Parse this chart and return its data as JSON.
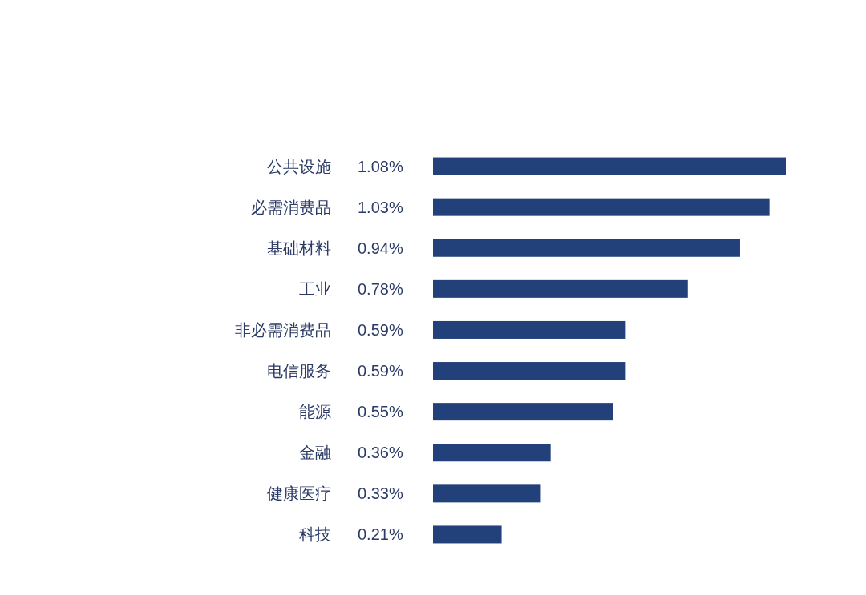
{
  "chart_data": {
    "type": "bar",
    "orientation": "horizontal",
    "categories": [
      "公共设施",
      "必需消费品",
      "基础材料",
      "工业",
      "非必需消费品",
      "电信服务",
      "能源",
      "金融",
      "健康医疗",
      "科技"
    ],
    "values": [
      1.08,
      1.03,
      0.94,
      0.78,
      0.59,
      0.59,
      0.55,
      0.36,
      0.33,
      0.21
    ],
    "value_labels": [
      "1.08%",
      "1.03%",
      "0.94%",
      "0.78%",
      "0.59%",
      "0.59%",
      "0.55%",
      "0.36%",
      "0.33%",
      "0.21%"
    ],
    "color": "#22407a"
  }
}
